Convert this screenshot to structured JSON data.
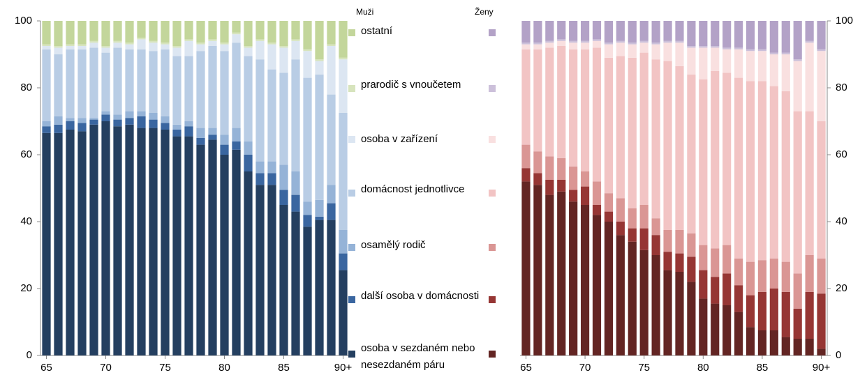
{
  "chart_data": [
    {
      "type": "bar",
      "stacked": true,
      "title": "Muži",
      "y_axis_position": "left",
      "categories": [
        "65",
        null,
        null,
        null,
        null,
        "70",
        null,
        null,
        null,
        null,
        "75",
        null,
        null,
        null,
        null,
        "80",
        null,
        null,
        null,
        null,
        "85",
        null,
        null,
        null,
        null,
        "90+"
      ],
      "ylim": [
        0,
        100
      ],
      "yticks": [
        0,
        20,
        40,
        60,
        80,
        100
      ],
      "series": [
        {
          "name": "osoba v sezdaném nebo nesezdaném páru",
          "color": "#243f60",
          "values": [
            66.5,
            66.5,
            67.5,
            67,
            69,
            70,
            68.5,
            69,
            68,
            68,
            67.5,
            65.5,
            65.5,
            63,
            64.5,
            60,
            61.5,
            55,
            51,
            51,
            45,
            43,
            38.5,
            40.5,
            40.5,
            25.5
          ]
        },
        {
          "name": "další osoba v domácnosti",
          "color": "#3a66a0",
          "values": [
            2,
            2.5,
            2.5,
            2.5,
            1.5,
            2,
            2,
            2,
            3.5,
            2.5,
            2,
            2,
            3,
            2,
            1.5,
            3,
            2.5,
            5,
            3.5,
            3.5,
            4.5,
            5,
            3.5,
            1,
            5,
            5
          ]
        },
        {
          "name": "osamělý rodič",
          "color": "#95b3d7",
          "values": [
            1.5,
            2.5,
            1,
            1.5,
            0.5,
            1,
            1.5,
            2,
            1.5,
            2,
            2,
            1.5,
            1.5,
            3,
            2,
            3,
            4,
            4,
            3.5,
            3.5,
            7.5,
            7,
            4,
            5,
            5.5,
            7
          ]
        },
        {
          "name": "domácnost jednotlivce",
          "color": "#b9cde5",
          "values": [
            21.5,
            18.5,
            20.5,
            20.5,
            21,
            17.5,
            20,
            18.5,
            18.5,
            18.5,
            20,
            20.5,
            19.5,
            23,
            24.5,
            25,
            25.5,
            25.5,
            30.5,
            27.5,
            27.5,
            33.5,
            37,
            37.5,
            27,
            35
          ]
        },
        {
          "name": "osoba v zařízení",
          "color": "#dce6f2",
          "values": [
            1,
            2,
            1,
            1,
            1.5,
            1.5,
            1.5,
            1.5,
            3,
            2.5,
            1.5,
            2.5,
            4.5,
            2,
            1.5,
            2,
            2.5,
            2.5,
            5.5,
            7.5,
            7.5,
            5.5,
            8,
            4,
            14.5,
            16
          ]
        },
        {
          "name": "prarodič s vnoučetem",
          "color": "#d7e4bd",
          "values": [
            0.5,
            0.5,
            0.5,
            0.5,
            0.5,
            0.5,
            0.5,
            0.5,
            0.5,
            0.5,
            0.5,
            0.5,
            0.5,
            0.5,
            0.5,
            0.5,
            0.5,
            0.5,
            0.5,
            0.5,
            0.5,
            0.5,
            0.5,
            0.5,
            0.5,
            0.5
          ]
        },
        {
          "name": "ostatní",
          "color": "#c3d69b",
          "values": [
            7,
            7.5,
            7,
            7,
            6,
            7.5,
            6,
            6.5,
            5,
            6,
            6.5,
            7.5,
            5.5,
            6.5,
            5.5,
            6.5,
            3.5,
            7.5,
            5.5,
            6.5,
            7.5,
            5.5,
            8.5,
            11.5,
            7,
            11
          ]
        }
      ]
    },
    {
      "type": "bar",
      "stacked": true,
      "title": "Ženy",
      "y_axis_position": "right",
      "categories": [
        "65",
        null,
        null,
        null,
        null,
        "70",
        null,
        null,
        null,
        null,
        "75",
        null,
        null,
        null,
        null,
        "80",
        null,
        null,
        null,
        null,
        "85",
        null,
        null,
        null,
        null,
        "90+"
      ],
      "ylim": [
        0,
        100
      ],
      "yticks": [
        0,
        20,
        40,
        60,
        80,
        100
      ],
      "series": [
        {
          "color": "#632523",
          "values": [
            52,
            51,
            48,
            49,
            46,
            45,
            42,
            40,
            36,
            34,
            31.5,
            30,
            25.5,
            25,
            22,
            17,
            15.5,
            15,
            13,
            8.5,
            7.5,
            7.5,
            5.5,
            5,
            5,
            2
          ]
        },
        {
          "color": "#963634",
          "values": [
            4,
            3.5,
            4.5,
            3.5,
            3.5,
            5.5,
            3,
            3,
            4,
            4,
            6.5,
            6,
            5.5,
            5.5,
            7.5,
            8.5,
            8,
            9.5,
            8,
            9.5,
            11.5,
            12.5,
            13.5,
            9,
            14,
            16.5
          ]
        },
        {
          "color": "#da9694",
          "values": [
            7,
            6.5,
            7,
            6.5,
            7,
            4.5,
            7,
            5.5,
            7,
            6,
            7,
            5,
            6.5,
            7,
            7,
            7.5,
            8.5,
            8.5,
            8,
            10,
            9.5,
            9,
            9,
            10.5,
            11,
            10.5
          ]
        },
        {
          "color": "#f2c4c4",
          "values": [
            28.5,
            30.5,
            32.5,
            33.5,
            35,
            36.5,
            40,
            40.5,
            42.5,
            45,
            45.5,
            47.5,
            50.5,
            49,
            47.5,
            49.5,
            53,
            51.5,
            54,
            54,
            53.5,
            51.5,
            51,
            48.5,
            43,
            41
          ]
        },
        {
          "color": "#f9e0e0",
          "values": [
            1.5,
            1.5,
            1.5,
            1.5,
            2,
            2,
            2,
            4,
            4,
            4,
            3,
            4.5,
            5.5,
            7,
            8,
            9.5,
            7,
            7,
            8.5,
            9,
            9,
            9.5,
            11,
            15,
            20.5,
            21
          ]
        },
        {
          "color": "#ccc0da",
          "values": [
            0.5,
            0.5,
            0.5,
            0.5,
            0.5,
            0.5,
            0.5,
            0.5,
            0.5,
            0.5,
            0.5,
            0.5,
            0.5,
            0.5,
            0.5,
            0.5,
            0.5,
            0.5,
            0.5,
            0.5,
            0.5,
            0.5,
            0.5,
            0.5,
            0.5,
            0.5
          ]
        },
        {
          "color": "#b3a2c7",
          "values": [
            6.5,
            6.5,
            6,
            5.5,
            6,
            6,
            5.5,
            6.5,
            6,
            6.5,
            6,
            6.5,
            6,
            6,
            7.5,
            7.5,
            7.5,
            8,
            8,
            8.5,
            8.5,
            9.5,
            9.5,
            11.5,
            6,
            8.5
          ]
        }
      ]
    }
  ]
}
